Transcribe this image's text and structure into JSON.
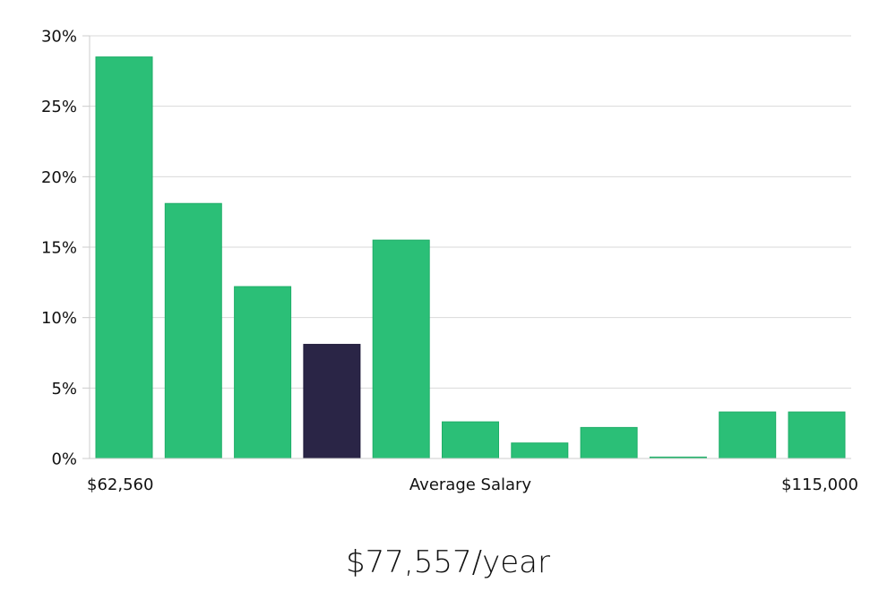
{
  "chart_data": {
    "type": "bar",
    "y_axis": {
      "min": 0,
      "max": 30,
      "tick_values": [
        0,
        5,
        10,
        15,
        20,
        25,
        30
      ],
      "tick_labels": [
        "0%",
        "5%",
        "10%",
        "15%",
        "20%",
        "25%",
        "30%"
      ],
      "grid": true
    },
    "x_labels": {
      "left": "$62,560",
      "center": "Average Salary",
      "right": "$115,000"
    },
    "values": [
      28.5,
      18.1,
      12.2,
      8.1,
      15.5,
      2.6,
      1.1,
      2.2,
      0.1,
      3.3,
      3.3
    ],
    "highlight_index": 3,
    "colors": {
      "bar": "#2bbf77",
      "bar_border": "#1fae68",
      "highlight": "#2a2546",
      "grid": "#d9d9d9",
      "axis": "#cccccc"
    }
  },
  "salary_label": "$77,557/year"
}
